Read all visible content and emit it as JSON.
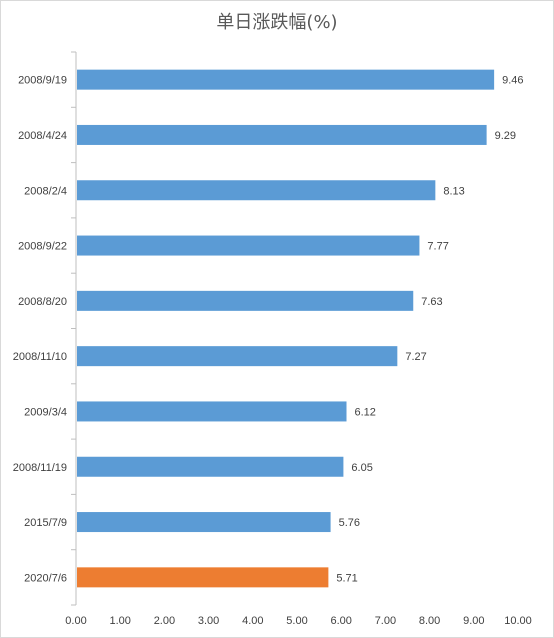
{
  "chart_data": {
    "type": "bar",
    "orientation": "horizontal",
    "title": "单日涨跌幅(%)",
    "categories": [
      "2008/9/19",
      "2008/4/24",
      "2008/2/4",
      "2008/9/22",
      "2008/8/20",
      "2008/11/10",
      "2009/3/4",
      "2008/11/19",
      "2015/7/9",
      "2020/7/6"
    ],
    "values": [
      9.46,
      9.29,
      8.13,
      7.77,
      7.63,
      7.27,
      6.12,
      6.05,
      5.76,
      5.71
    ],
    "value_labels": [
      "9.46",
      "9.29",
      "8.13",
      "7.77",
      "7.63",
      "7.27",
      "6.12",
      "6.05",
      "5.76",
      "5.71"
    ],
    "xlim": [
      0,
      10
    ],
    "x_ticks": [
      "0.00",
      "1.00",
      "2.00",
      "3.00",
      "4.00",
      "5.00",
      "6.00",
      "7.00",
      "8.00",
      "9.00",
      "10.00"
    ],
    "grid": false,
    "colors": {
      "default": "#5b9bd5",
      "highlight": "#ed7d31",
      "axis": "#bfbfbf",
      "text": "#404040"
    },
    "highlight_index": 9
  }
}
